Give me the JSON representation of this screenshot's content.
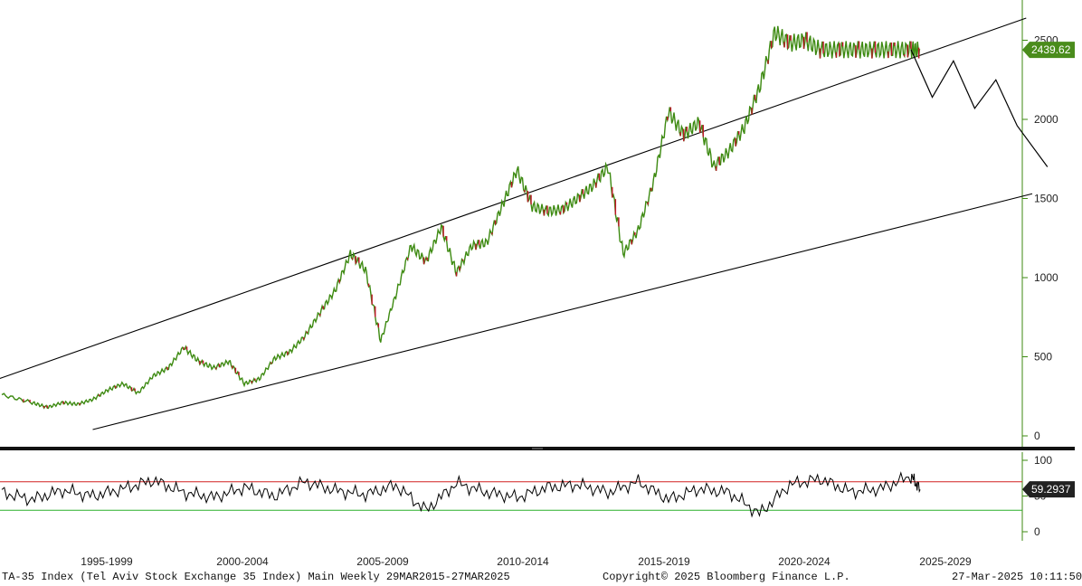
{
  "chart_data": [
    {
      "type": "line",
      "panel": "price",
      "series_name": "TA-35 Index",
      "y_ticks": [
        0,
        500,
        1000,
        1500,
        2000,
        2500
      ],
      "y_tick_labels": [
        "0",
        "500",
        "1000",
        "1500",
        "2000",
        "2500"
      ],
      "ylim": [
        0,
        2800
      ],
      "x_periods": [
        "1995-1999",
        "2000-2004",
        "2005-2009",
        "2010-2014",
        "2015-2019",
        "2020-2024",
        "2025-2029"
      ],
      "last_value": 2439.62,
      "last_value_label": "2439.62",
      "series": [
        {
          "name": "",
          "x": [
            0.0,
            1.0,
            1.5,
            2.0,
            2.5,
            3.0,
            3.5,
            4.0,
            4.5,
            5.0,
            5.5,
            6.0,
            6.5,
            7.0,
            7.5,
            8.0,
            8.5,
            9.0,
            9.5,
            10.0,
            10.5,
            11.0,
            11.5,
            12.0,
            12.5,
            13.0,
            13.5,
            14.0,
            14.5,
            15.0,
            15.5,
            16.0,
            16.5,
            17.0,
            17.5,
            18.0,
            18.5,
            19.0,
            19.5,
            20.0,
            20.5,
            21.0,
            21.5,
            22.0,
            22.5,
            23.0,
            23.5,
            24.0,
            24.5,
            25.0,
            25.5,
            26.0,
            26.5,
            27.0,
            27.5,
            28.0,
            28.5,
            29.0,
            29.5,
            30.0,
            30.3
          ],
          "values": [
            260,
            210,
            180,
            210,
            200,
            230,
            290,
            330,
            270,
            380,
            430,
            560,
            470,
            430,
            470,
            330,
            360,
            490,
            530,
            630,
            780,
            920,
            1150,
            1050,
            600,
            890,
            1200,
            1100,
            1320,
            1030,
            1200,
            1220,
            1450,
            1680,
            1450,
            1420,
            1430,
            1500,
            1580,
            1700,
            1150,
            1300,
            1600,
            2050,
            1900,
            1980,
            1700,
            1800,
            1950,
            2200,
            2550,
            2480,
            2500,
            2440,
            2440,
            2440,
            2440,
            2440,
            2440,
            2440,
            2440
          ]
        }
      ],
      "channel_lines": [
        {
          "name": "upper-trendline",
          "x": [
            -1.0,
            33.8
          ],
          "values": [
            300,
            2640
          ]
        },
        {
          "name": "lower-trendline",
          "x": [
            3.0,
            34.0
          ],
          "values": [
            40,
            1530
          ]
        }
      ],
      "projection": {
        "x": [
          30.0,
          30.7,
          31.4,
          32.1,
          32.8,
          33.5,
          34.5
        ],
        "values": [
          2440,
          2140,
          2370,
          2070,
          2250,
          1960,
          1700
        ]
      }
    },
    {
      "type": "line",
      "panel": "oscillator",
      "y_ticks": [
        0,
        50,
        100
      ],
      "y_tick_labels": [
        "0",
        "50",
        "100"
      ],
      "ylim": [
        -10,
        110
      ],
      "overbought": 70,
      "oversold": 30,
      "last_value": 59.2937,
      "last_value_label": "59.2937",
      "series": [
        {
          "name": "",
          "x": [
            0.0,
            1.0,
            2.0,
            3.0,
            4.0,
            5.0,
            6.0,
            7.0,
            8.0,
            9.0,
            10.0,
            11.0,
            12.0,
            13.0,
            14.0,
            15.0,
            16.0,
            17.0,
            18.0,
            19.0,
            20.0,
            21.0,
            22.0,
            23.0,
            24.0,
            25.0,
            26.0,
            27.0,
            28.0,
            29.0,
            30.0,
            30.3
          ],
          "values": [
            55,
            45,
            58,
            50,
            60,
            72,
            55,
            48,
            62,
            50,
            70,
            58,
            52,
            65,
            30,
            68,
            55,
            48,
            62,
            66,
            55,
            70,
            45,
            60,
            55,
            25,
            66,
            74,
            56,
            60,
            78,
            59
          ]
        }
      ]
    }
  ],
  "footer": {
    "left": "TA-35 Index (Tel Aviv Stock Exchange 35 Index) Main  Weekly 29MAR2015-27MAR2025",
    "center": "Copyright© 2025 Bloomberg Finance L.P.",
    "right": "27-Mar-2025 10:11:50"
  },
  "colors": {
    "price_line": "#3d8a11",
    "down_candle": "#c0152a",
    "trendline": "#000000",
    "osc_line": "#000000",
    "overbought_line": "#d22020",
    "oversold_line": "#2ab02a",
    "price_label_bg": "#4a8c1c",
    "osc_label_bg": "#222222",
    "axis_line": "#3d8a11",
    "divider": "#111111"
  }
}
